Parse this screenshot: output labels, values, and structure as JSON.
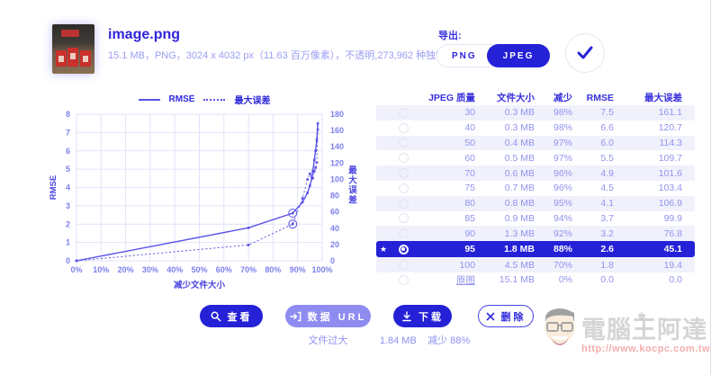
{
  "header": {
    "filename": "image.png",
    "file_info": "15.1 MB，PNG，3024 x 4032 px（11.63 百万像素），不透明,273,962 种独特的颜色"
  },
  "export": {
    "label": "导出:",
    "options": [
      {
        "label": "PNG",
        "selected": false
      },
      {
        "label": "JPEG",
        "selected": true
      }
    ]
  },
  "chart_data": {
    "type": "line",
    "xlabel": "减少文件大小",
    "ylabel_left": "RMSE",
    "ylabel_right": "最大误差",
    "x_ticks": [
      "0%",
      "10%",
      "20%",
      "30%",
      "40%",
      "50%",
      "60%",
      "70%",
      "80%",
      "90%",
      "100%"
    ],
    "xlim": [
      0,
      100
    ],
    "ylim_left": [
      0,
      8
    ],
    "ylim_right": [
      0,
      180
    ],
    "right_tick_step": 20,
    "legend_position": "top",
    "grid": true,
    "highlight_x": 88,
    "series": [
      {
        "name": "RMSE",
        "style": "solid",
        "axis": "left",
        "x": [
          0,
          70,
          88,
          92,
          94,
          95,
          95.8,
          96.2,
          96.8,
          97.3,
          97.8,
          98.2
        ],
        "y": [
          0,
          1.8,
          2.6,
          3.2,
          3.7,
          4.1,
          4.5,
          4.9,
          5.5,
          6.0,
          6.6,
          7.5
        ]
      },
      {
        "name": "最大误差",
        "style": "dotted",
        "axis": "right",
        "x": [
          0,
          70,
          88,
          92,
          94,
          95,
          95.8,
          96.2,
          96.8,
          97.3,
          97.8,
          98.2
        ],
        "y": [
          0,
          19.4,
          45.1,
          76.8,
          99.9,
          106.9,
          103.4,
          101.6,
          109.7,
          114.3,
          120.7,
          161.1
        ]
      }
    ]
  },
  "table": {
    "columns": [
      "JPEG 质量",
      "文件大小",
      "减少",
      "RMSE",
      "最大误差"
    ],
    "rows": [
      {
        "quality": "30",
        "size": "0.3 MB",
        "reduction": "98%",
        "rmse": "7.5",
        "max_error": "161.1",
        "selected": false
      },
      {
        "quality": "40",
        "size": "0.3 MB",
        "reduction": "98%",
        "rmse": "6.6",
        "max_error": "120.7",
        "selected": false
      },
      {
        "quality": "50",
        "size": "0.4 MB",
        "reduction": "97%",
        "rmse": "6.0",
        "max_error": "114.3",
        "selected": false
      },
      {
        "quality": "60",
        "size": "0.5 MB",
        "reduction": "97%",
        "rmse": "5.5",
        "max_error": "109.7",
        "selected": false
      },
      {
        "quality": "70",
        "size": "0.6 MB",
        "reduction": "96%",
        "rmse": "4.9",
        "max_error": "101.6",
        "selected": false
      },
      {
        "quality": "75",
        "size": "0.7 MB",
        "reduction": "96%",
        "rmse": "4.5",
        "max_error": "103.4",
        "selected": false
      },
      {
        "quality": "80",
        "size": "0.8 MB",
        "reduction": "95%",
        "rmse": "4.1",
        "max_error": "106.9",
        "selected": false
      },
      {
        "quality": "85",
        "size": "0.9 MB",
        "reduction": "94%",
        "rmse": "3.7",
        "max_error": "99.9",
        "selected": false
      },
      {
        "quality": "90",
        "size": "1.3 MB",
        "reduction": "92%",
        "rmse": "3.2",
        "max_error": "76.8",
        "selected": false
      },
      {
        "quality": "95",
        "size": "1.8 MB",
        "reduction": "88%",
        "rmse": "2.6",
        "max_error": "45.1",
        "selected": true,
        "starred": true
      },
      {
        "quality": "100",
        "size": "4.5 MB",
        "reduction": "70%",
        "rmse": "1.8",
        "max_error": "19.4",
        "selected": false
      },
      {
        "quality": "原图",
        "size": "15.1 MB",
        "reduction": "0%",
        "rmse": "0.0",
        "max_error": "0.0",
        "selected": false,
        "original": true
      }
    ]
  },
  "actions": {
    "view": "查看",
    "data_url": "数据 URL",
    "data_url_note": "文件过大",
    "download": "下载",
    "download_note_size": "1.84 MB",
    "download_note_reduction": "减少 88%",
    "delete": "删除"
  },
  "watermark": {
    "title": "電腦王阿達",
    "url": "http://www.kocpc.com.tw"
  },
  "colors": {
    "accent": "#2421d7",
    "title_blue": "#2d24db",
    "light_text": "#9193ef",
    "chart_line": "#5a52e6",
    "row_alt": "#f1f1fc",
    "disabled_button": "#8f8cf1",
    "watermark_url_red": "#eb5555"
  }
}
